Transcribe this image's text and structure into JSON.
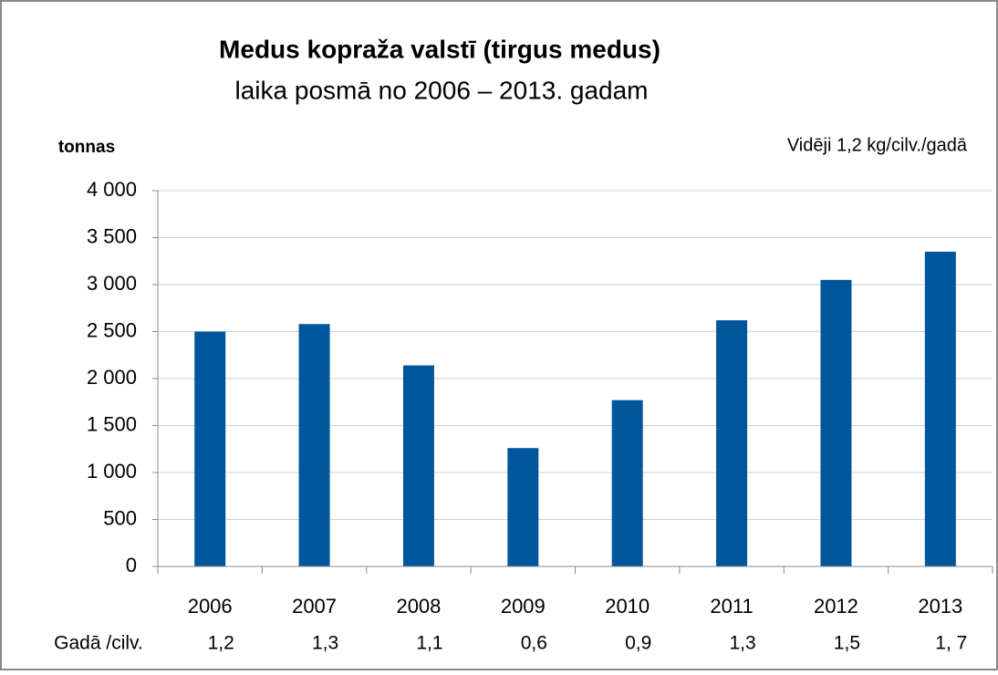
{
  "chart_data": {
    "type": "bar",
    "title": "Medus kopraža valstī (tirgus medus)",
    "subtitle": "laika posmā no 2006 – 2013. gadam",
    "y_label": "tonnas",
    "annotation": "Vidēji 1,2 kg/cilv./gadā",
    "categories": [
      "2006",
      "2007",
      "2008",
      "2009",
      "2010",
      "2011",
      "2012",
      "2013"
    ],
    "values": [
      2500,
      2580,
      2140,
      1260,
      1770,
      2620,
      3050,
      3350
    ],
    "color": "#00569b",
    "ylim": [
      0,
      4000
    ],
    "yticks": [
      0,
      500,
      {
        "value": 1000,
        "label": "1 000"
      },
      {
        "value": 1500,
        "label": "1 500"
      },
      {
        "value": 2000,
        "label": "2 000"
      },
      {
        "value": 2500,
        "label": "2 500"
      },
      {
        "value": 3000,
        "label": "3 000"
      },
      {
        "value": 3500,
        "label": "3 500"
      },
      {
        "value": 4000,
        "label": "4 000"
      }
    ],
    "grid": true,
    "per_capita_label": "Gadā /cilv.",
    "per_capita": [
      "1,2",
      "1,3",
      "1,1",
      "0,6",
      "0,9",
      "1,3",
      "1,5",
      "1, 7"
    ]
  }
}
